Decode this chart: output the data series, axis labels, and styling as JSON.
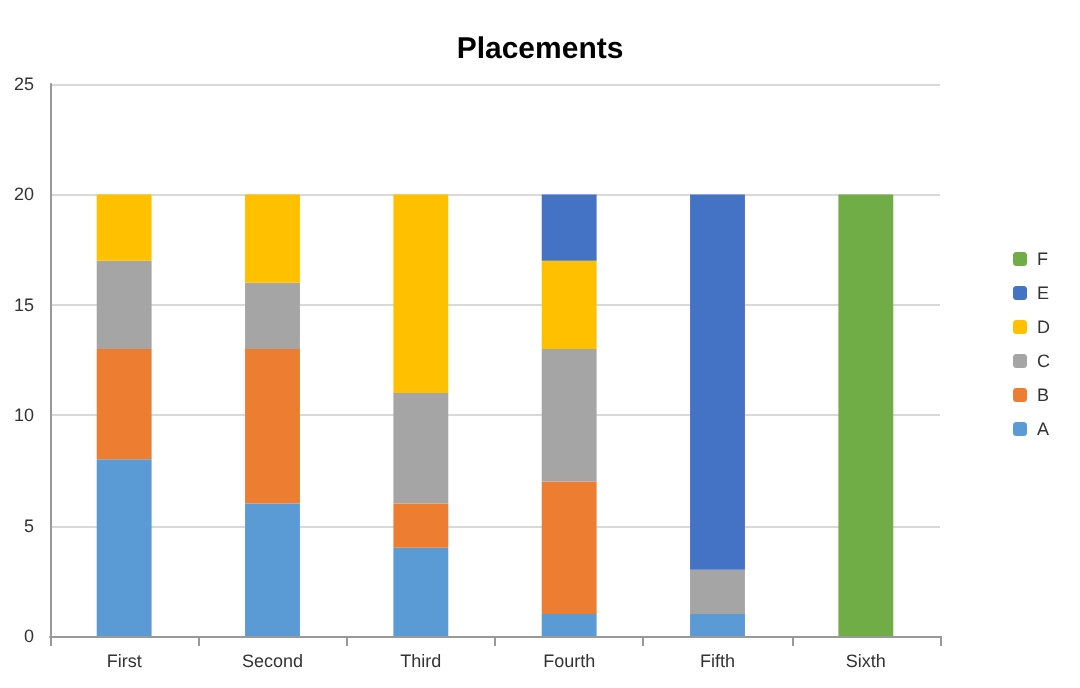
{
  "chart_data": {
    "type": "bar",
    "title": "Placements",
    "stacked": true,
    "categories": [
      "First",
      "Second",
      "Third",
      "Fourth",
      "Fifth",
      "Sixth"
    ],
    "series": [
      {
        "name": "A",
        "color": "#5b9bd5",
        "values": [
          8,
          6,
          4,
          1,
          1,
          0
        ]
      },
      {
        "name": "B",
        "color": "#ed7d31",
        "values": [
          5,
          7,
          2,
          6,
          0,
          0
        ]
      },
      {
        "name": "C",
        "color": "#a5a5a5",
        "values": [
          4,
          3,
          5,
          6,
          2,
          0
        ]
      },
      {
        "name": "D",
        "color": "#ffc000",
        "values": [
          3,
          4,
          9,
          4,
          0,
          0
        ]
      },
      {
        "name": "E",
        "color": "#4472c4",
        "values": [
          0,
          0,
          0,
          3,
          17,
          0
        ]
      },
      {
        "name": "F",
        "color": "#70ad47",
        "values": [
          0,
          0,
          0,
          0,
          0,
          20
        ]
      }
    ],
    "ylim": [
      0,
      25
    ],
    "yticks": [
      0,
      5,
      10,
      15,
      20,
      25
    ],
    "grid": "y",
    "legend": "right"
  }
}
